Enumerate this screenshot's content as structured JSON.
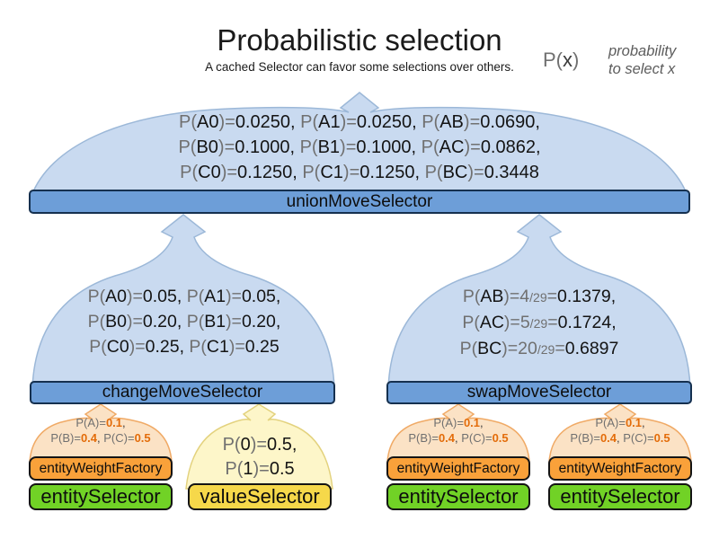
{
  "title": "Probabilistic selection",
  "subtitle": "A cached Selector can favor some selections over others.",
  "legend": {
    "symbol": [
      [
        "P(",
        "g"
      ],
      [
        "x",
        "d"
      ],
      [
        ")",
        "g"
      ]
    ],
    "desc1": "probability",
    "desc2": "to select x"
  },
  "colors": {
    "blue_bar": "#6d9ed8",
    "blue_dome": "#c9daf0",
    "orange_bar": "#f9a13a",
    "orange_dome": "#fbe2c5",
    "green_bar": "#71d226",
    "yellow_bar": "#f6d84a",
    "yellow_dome": "#fdf6c9",
    "probability_value_orange": "#e36c0a",
    "gray_text": "#707070"
  },
  "top_dome": {
    "lines": [
      [
        [
          "P(",
          "g"
        ],
        [
          "A0",
          "b"
        ],
        [
          ")=",
          "g"
        ],
        [
          "0.0250",
          "b"
        ],
        [
          ", ",
          "b"
        ],
        [
          "P(",
          "g"
        ],
        [
          "A1",
          "b"
        ],
        [
          ")=",
          "g"
        ],
        [
          "0.0250",
          "b"
        ],
        [
          ", ",
          "b"
        ],
        [
          "P(",
          "g"
        ],
        [
          "AB",
          "b"
        ],
        [
          ")=",
          "g"
        ],
        [
          "0.0690",
          "b"
        ],
        [
          ",",
          "b"
        ]
      ],
      [
        [
          "P(",
          "g"
        ],
        [
          "B0",
          "b"
        ],
        [
          ")=",
          "g"
        ],
        [
          "0.1000",
          "b"
        ],
        [
          ", ",
          "b"
        ],
        [
          "P(",
          "g"
        ],
        [
          "B1",
          "b"
        ],
        [
          ")=",
          "g"
        ],
        [
          "0.1000",
          "b"
        ],
        [
          ", ",
          "b"
        ],
        [
          "P(",
          "g"
        ],
        [
          "AC",
          "b"
        ],
        [
          ")=",
          "g"
        ],
        [
          "0.0862",
          "b"
        ],
        [
          ",",
          "b"
        ]
      ],
      [
        [
          "P(",
          "g"
        ],
        [
          "C0",
          "b"
        ],
        [
          ")=",
          "g"
        ],
        [
          "0.1250",
          "b"
        ],
        [
          ", ",
          "b"
        ],
        [
          "P(",
          "g"
        ],
        [
          "C1",
          "b"
        ],
        [
          ")=",
          "g"
        ],
        [
          "0.1250",
          "b"
        ],
        [
          ", ",
          "b"
        ],
        [
          "P(",
          "g"
        ],
        [
          "BC",
          "b"
        ],
        [
          ")=",
          "g"
        ],
        [
          "0.3448",
          "b"
        ]
      ]
    ]
  },
  "change_dome": {
    "lines": [
      [
        [
          "P(",
          "g"
        ],
        [
          "A0",
          "b"
        ],
        [
          ")=",
          "g"
        ],
        [
          "0.05",
          "b"
        ],
        [
          ", ",
          "b"
        ],
        [
          "P(",
          "g"
        ],
        [
          "A1",
          "b"
        ],
        [
          ")=",
          "g"
        ],
        [
          "0.05",
          "b"
        ],
        [
          ",",
          "b"
        ]
      ],
      [
        [
          "P(",
          "g"
        ],
        [
          "B0",
          "b"
        ],
        [
          ")=",
          "g"
        ],
        [
          "0.20",
          "b"
        ],
        [
          ", ",
          "b"
        ],
        [
          "P(",
          "g"
        ],
        [
          "B1",
          "b"
        ],
        [
          ")=",
          "g"
        ],
        [
          "0.20",
          "b"
        ],
        [
          ",",
          "b"
        ]
      ],
      [
        [
          "P(",
          "g"
        ],
        [
          "C0",
          "b"
        ],
        [
          ")=",
          "g"
        ],
        [
          "0.25",
          "b"
        ],
        [
          ", ",
          "b"
        ],
        [
          "P(",
          "g"
        ],
        [
          "C1",
          "b"
        ],
        [
          ")=",
          "g"
        ],
        [
          "0.25",
          "b"
        ]
      ]
    ]
  },
  "swap_dome": {
    "lines": [
      [
        [
          "P(",
          "g"
        ],
        [
          "AB",
          "b"
        ],
        [
          ")=",
          "g"
        ],
        [
          "4",
          "g"
        ],
        [
          "/29",
          "s"
        ],
        [
          "=",
          "g"
        ],
        [
          "0.1379",
          "b"
        ],
        [
          ",",
          "b"
        ]
      ],
      [
        [
          "P(",
          "g"
        ],
        [
          "AC",
          "b"
        ],
        [
          ")=",
          "g"
        ],
        [
          "5",
          "g"
        ],
        [
          "/29",
          "s"
        ],
        [
          "=",
          "g"
        ],
        [
          "0.1724",
          "b"
        ],
        [
          ",",
          "b"
        ]
      ],
      [
        [
          "P(",
          "g"
        ],
        [
          "BC",
          "b"
        ],
        [
          ")=",
          "g"
        ],
        [
          "20",
          "g"
        ],
        [
          "/29",
          "s"
        ],
        [
          "=",
          "g"
        ],
        [
          "0.6897",
          "b"
        ]
      ]
    ]
  },
  "weight_dome": {
    "lines": [
      [
        [
          "P(A)=",
          "g"
        ],
        [
          "0.1",
          "o"
        ],
        [
          ",",
          "d"
        ]
      ],
      [
        [
          "P(B)=",
          "g"
        ],
        [
          "0.4",
          "o"
        ],
        [
          ", ",
          "d"
        ],
        [
          "P(C)=",
          "g"
        ],
        [
          "0.5",
          "o"
        ]
      ]
    ]
  },
  "value_dome": {
    "lines": [
      [
        [
          "P(",
          "g"
        ],
        [
          "0",
          "b"
        ],
        [
          ")=",
          "g"
        ],
        [
          "0.5",
          "b"
        ],
        [
          ",",
          "b"
        ]
      ],
      [
        [
          "P(",
          "g"
        ],
        [
          "1",
          "b"
        ],
        [
          ")=",
          "g"
        ],
        [
          "0.5",
          "b"
        ]
      ]
    ]
  },
  "bars": {
    "union": "unionMoveSelector",
    "change": "changeMoveSelector",
    "swap": "swapMoveSelector",
    "entity_weight": "entityWeightFactory",
    "entity": "entitySelector",
    "value": "valueSelector"
  }
}
